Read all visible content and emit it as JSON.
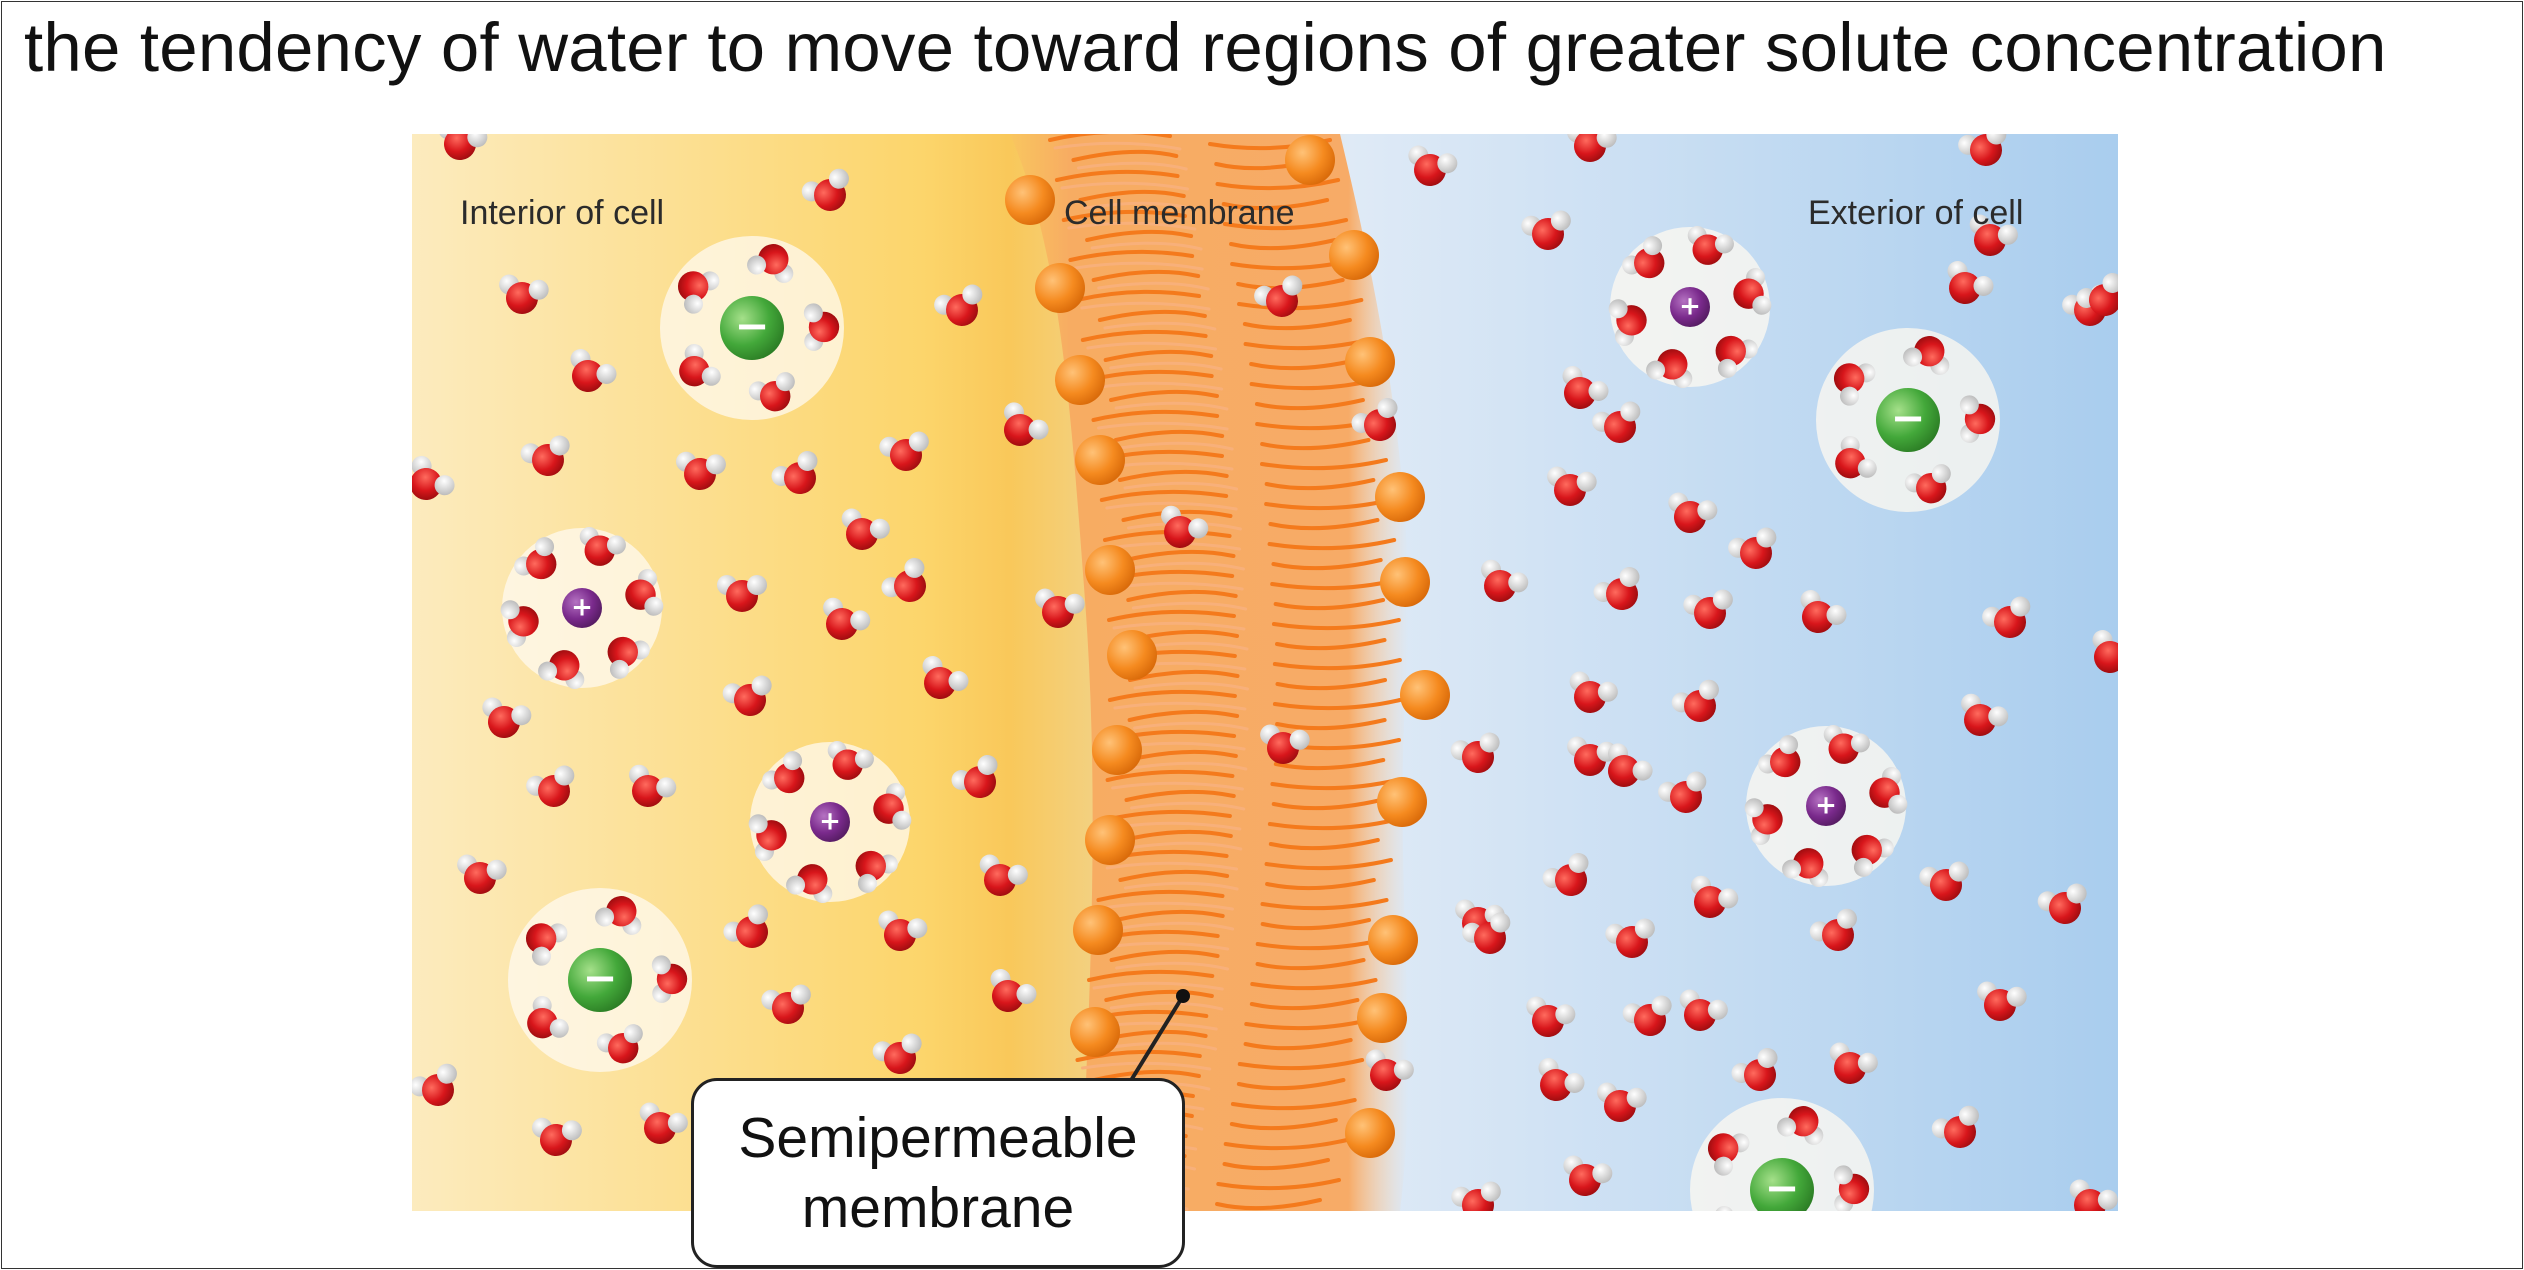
{
  "slide": {
    "title": "the tendency of water to move toward regions of greater solute concentration"
  },
  "diagram": {
    "labels": {
      "interior": "Interior of cell",
      "membrane": "Cell membrane",
      "exterior": "Exterior of cell"
    },
    "callout": "Semipermeable\nmembrane",
    "ion_signs": {
      "anion": "−",
      "cation": "+"
    },
    "colors": {
      "interior": "#fbe3a6",
      "membrane": "#f7ae5e",
      "exterior": "#bcd9f0",
      "water_oxygen": "#d8161b",
      "water_hydrogen": "#f2f2f2",
      "anion": "#43a83a",
      "cation": "#7a2a8c",
      "lipid_head": "#f58a1f",
      "lipid_tail": "#f47a1c"
    }
  }
}
